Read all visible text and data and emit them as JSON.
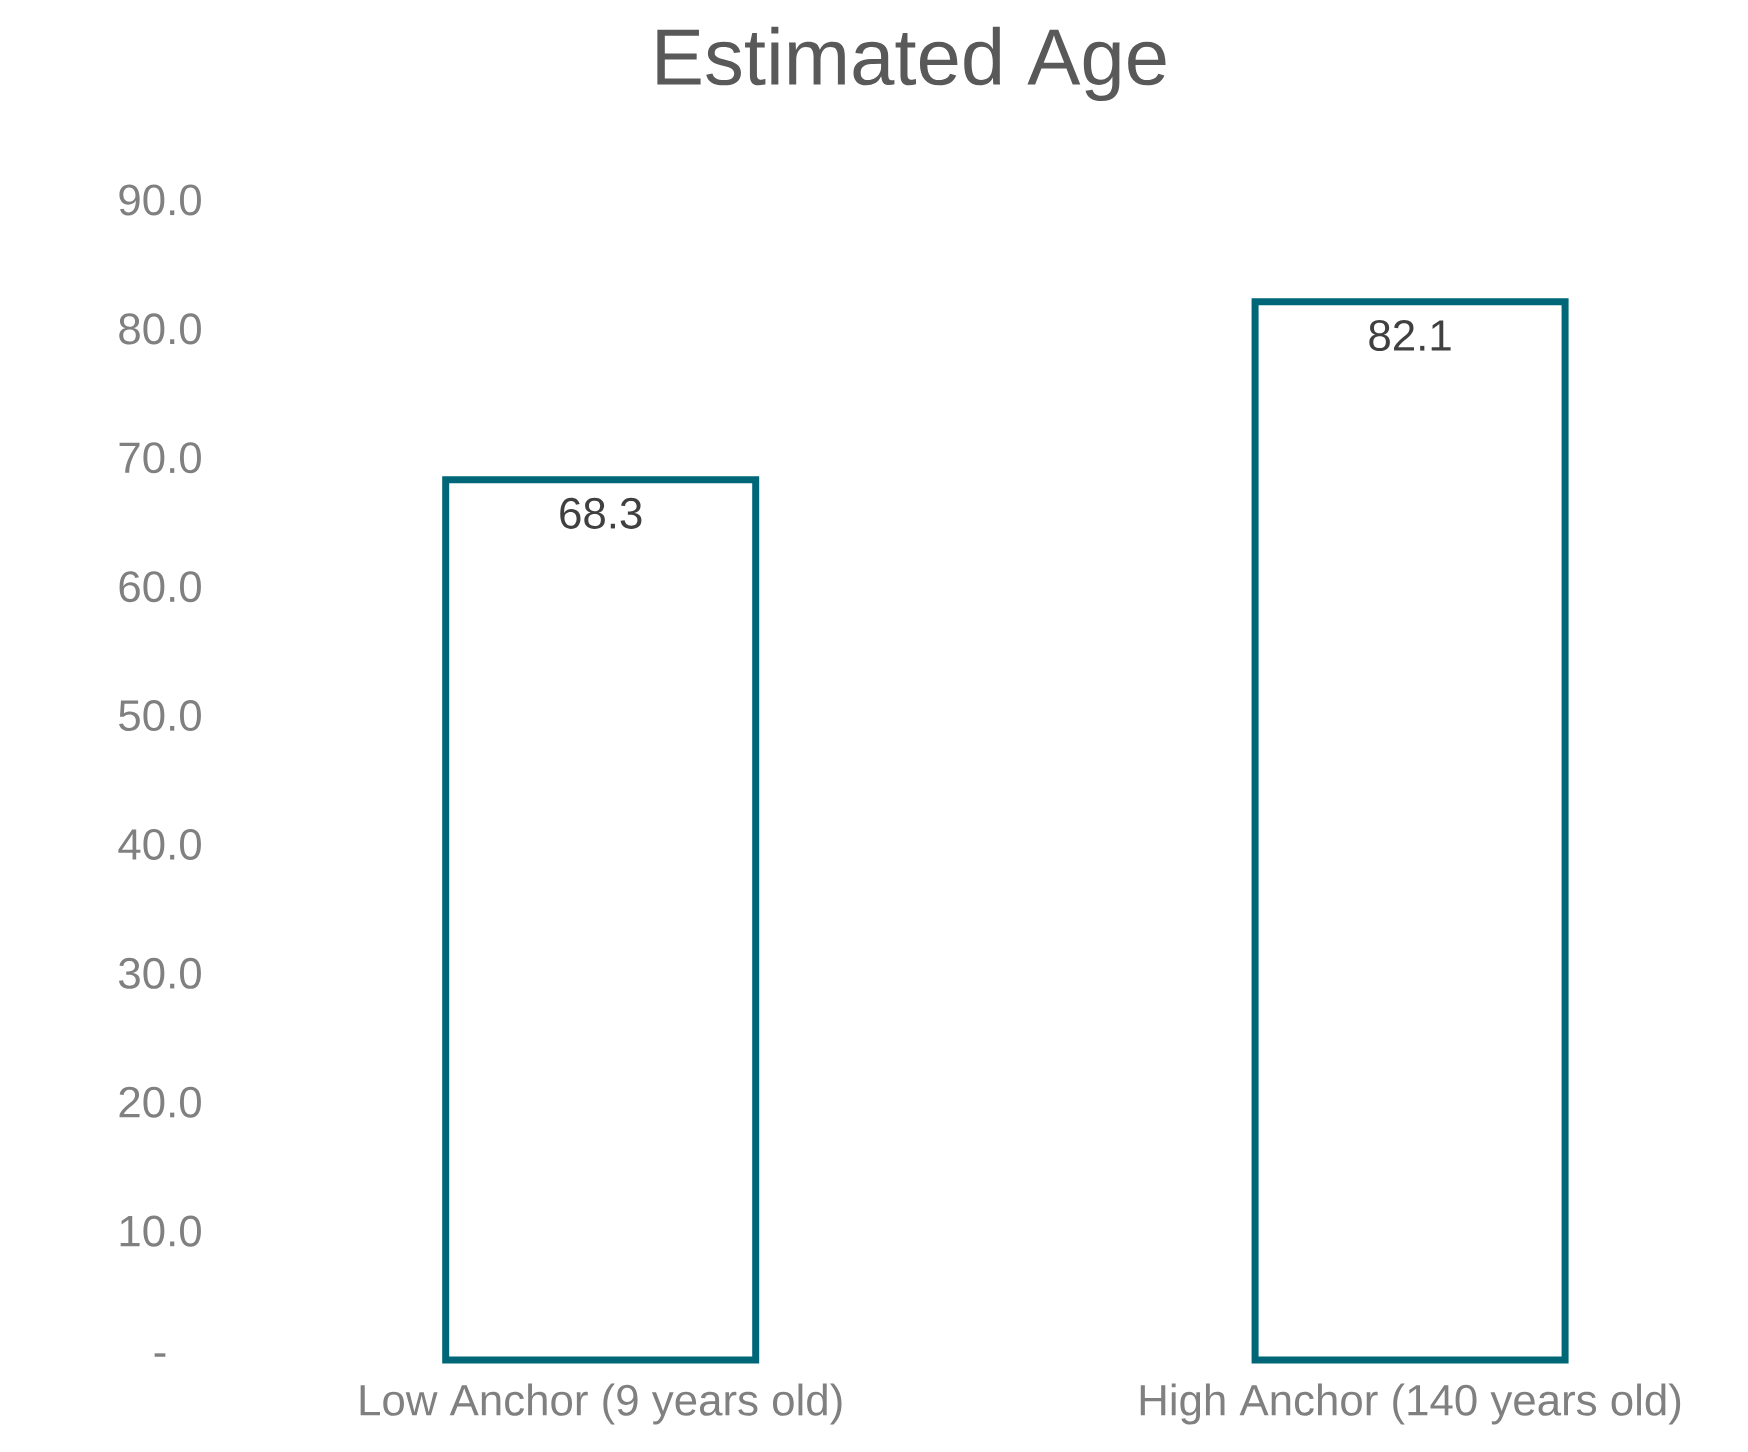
{
  "chart_data": {
    "type": "bar",
    "title": "Estimated Age",
    "categories": [
      "Low Anchor (9 years old)",
      "High Anchor (140 years old)"
    ],
    "values": [
      68.3,
      82.1
    ],
    "color": "#006778",
    "ylim": [
      0,
      90
    ],
    "yticks": [
      {
        "value": 0,
        "label": "-"
      },
      {
        "value": 10,
        "label": "10.0"
      },
      {
        "value": 20,
        "label": "20.0"
      },
      {
        "value": 30,
        "label": "30.0"
      },
      {
        "value": 40,
        "label": "40.0"
      },
      {
        "value": 50,
        "label": "50.0"
      },
      {
        "value": 60,
        "label": "60.0"
      },
      {
        "value": 70,
        "label": "70.0"
      },
      {
        "value": 80,
        "label": "80.0"
      },
      {
        "value": 90,
        "label": "90.0"
      }
    ],
    "data_labels": true
  }
}
